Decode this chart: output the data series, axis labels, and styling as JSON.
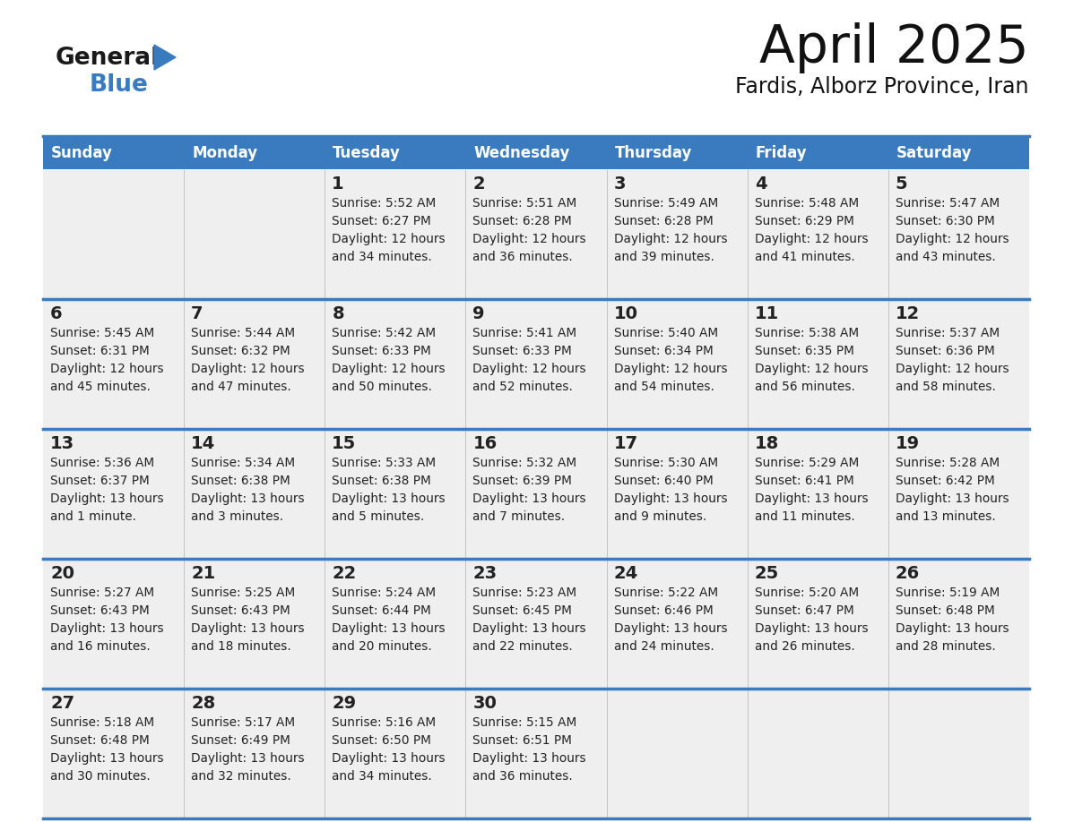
{
  "title": "April 2025",
  "subtitle": "Fardis, Alborz Province, Iran",
  "header_bg": "#3a7bbf",
  "header_text_color": "#ffffff",
  "cell_bg": "#efefef",
  "border_color": "#3a7bbf",
  "text_color": "#222222",
  "day_names": [
    "Sunday",
    "Monday",
    "Tuesday",
    "Wednesday",
    "Thursday",
    "Friday",
    "Saturday"
  ],
  "calendar": [
    [
      {
        "day": "",
        "sunrise": "",
        "sunset": "",
        "daylight": ""
      },
      {
        "day": "",
        "sunrise": "",
        "sunset": "",
        "daylight": ""
      },
      {
        "day": "1",
        "sunrise": "5:52 AM",
        "sunset": "6:27 PM",
        "daylight": "12 hours and 34 minutes."
      },
      {
        "day": "2",
        "sunrise": "5:51 AM",
        "sunset": "6:28 PM",
        "daylight": "12 hours and 36 minutes."
      },
      {
        "day": "3",
        "sunrise": "5:49 AM",
        "sunset": "6:28 PM",
        "daylight": "12 hours and 39 minutes."
      },
      {
        "day": "4",
        "sunrise": "5:48 AM",
        "sunset": "6:29 PM",
        "daylight": "12 hours and 41 minutes."
      },
      {
        "day": "5",
        "sunrise": "5:47 AM",
        "sunset": "6:30 PM",
        "daylight": "12 hours and 43 minutes."
      }
    ],
    [
      {
        "day": "6",
        "sunrise": "5:45 AM",
        "sunset": "6:31 PM",
        "daylight": "12 hours and 45 minutes."
      },
      {
        "day": "7",
        "sunrise": "5:44 AM",
        "sunset": "6:32 PM",
        "daylight": "12 hours and 47 minutes."
      },
      {
        "day": "8",
        "sunrise": "5:42 AM",
        "sunset": "6:33 PM",
        "daylight": "12 hours and 50 minutes."
      },
      {
        "day": "9",
        "sunrise": "5:41 AM",
        "sunset": "6:33 PM",
        "daylight": "12 hours and 52 minutes."
      },
      {
        "day": "10",
        "sunrise": "5:40 AM",
        "sunset": "6:34 PM",
        "daylight": "12 hours and 54 minutes."
      },
      {
        "day": "11",
        "sunrise": "5:38 AM",
        "sunset": "6:35 PM",
        "daylight": "12 hours and 56 minutes."
      },
      {
        "day": "12",
        "sunrise": "5:37 AM",
        "sunset": "6:36 PM",
        "daylight": "12 hours and 58 minutes."
      }
    ],
    [
      {
        "day": "13",
        "sunrise": "5:36 AM",
        "sunset": "6:37 PM",
        "daylight": "13 hours and 1 minute."
      },
      {
        "day": "14",
        "sunrise": "5:34 AM",
        "sunset": "6:38 PM",
        "daylight": "13 hours and 3 minutes."
      },
      {
        "day": "15",
        "sunrise": "5:33 AM",
        "sunset": "6:38 PM",
        "daylight": "13 hours and 5 minutes."
      },
      {
        "day": "16",
        "sunrise": "5:32 AM",
        "sunset": "6:39 PM",
        "daylight": "13 hours and 7 minutes."
      },
      {
        "day": "17",
        "sunrise": "5:30 AM",
        "sunset": "6:40 PM",
        "daylight": "13 hours and 9 minutes."
      },
      {
        "day": "18",
        "sunrise": "5:29 AM",
        "sunset": "6:41 PM",
        "daylight": "13 hours and 11 minutes."
      },
      {
        "day": "19",
        "sunrise": "5:28 AM",
        "sunset": "6:42 PM",
        "daylight": "13 hours and 13 minutes."
      }
    ],
    [
      {
        "day": "20",
        "sunrise": "5:27 AM",
        "sunset": "6:43 PM",
        "daylight": "13 hours and 16 minutes."
      },
      {
        "day": "21",
        "sunrise": "5:25 AM",
        "sunset": "6:43 PM",
        "daylight": "13 hours and 18 minutes."
      },
      {
        "day": "22",
        "sunrise": "5:24 AM",
        "sunset": "6:44 PM",
        "daylight": "13 hours and 20 minutes."
      },
      {
        "day": "23",
        "sunrise": "5:23 AM",
        "sunset": "6:45 PM",
        "daylight": "13 hours and 22 minutes."
      },
      {
        "day": "24",
        "sunrise": "5:22 AM",
        "sunset": "6:46 PM",
        "daylight": "13 hours and 24 minutes."
      },
      {
        "day": "25",
        "sunrise": "5:20 AM",
        "sunset": "6:47 PM",
        "daylight": "13 hours and 26 minutes."
      },
      {
        "day": "26",
        "sunrise": "5:19 AM",
        "sunset": "6:48 PM",
        "daylight": "13 hours and 28 minutes."
      }
    ],
    [
      {
        "day": "27",
        "sunrise": "5:18 AM",
        "sunset": "6:48 PM",
        "daylight": "13 hours and 30 minutes."
      },
      {
        "day": "28",
        "sunrise": "5:17 AM",
        "sunset": "6:49 PM",
        "daylight": "13 hours and 32 minutes."
      },
      {
        "day": "29",
        "sunrise": "5:16 AM",
        "sunset": "6:50 PM",
        "daylight": "13 hours and 34 minutes."
      },
      {
        "day": "30",
        "sunrise": "5:15 AM",
        "sunset": "6:51 PM",
        "daylight": "13 hours and 36 minutes."
      },
      {
        "day": "",
        "sunrise": "",
        "sunset": "",
        "daylight": ""
      },
      {
        "day": "",
        "sunrise": "",
        "sunset": "",
        "daylight": ""
      },
      {
        "day": "",
        "sunrise": "",
        "sunset": "",
        "daylight": ""
      }
    ]
  ]
}
